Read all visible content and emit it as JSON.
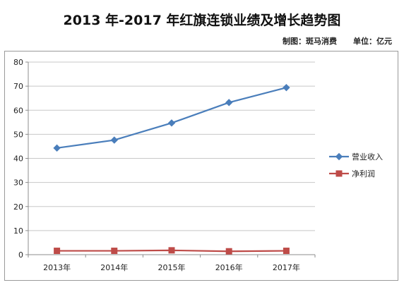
{
  "header": {
    "title": "2013 年-2017 年红旗连锁业绩及增长趋势图",
    "source": "制图：斑马消费",
    "unit": "单位：亿元"
  },
  "chart_data": {
    "type": "line",
    "categories": [
      "2013年",
      "2014年",
      "2015年",
      "2016年",
      "2017年"
    ],
    "ylim": [
      0,
      80
    ],
    "yticks": [
      0,
      10,
      20,
      30,
      40,
      50,
      60,
      70,
      80
    ],
    "grid": true,
    "legend_position": "right",
    "series": [
      {
        "name": "营业收入",
        "values": [
          44.3,
          47.6,
          54.7,
          63.2,
          69.4
        ],
        "color": "#4a7ebb",
        "marker": "diamond"
      },
      {
        "name": "净利润",
        "values": [
          1.6,
          1.6,
          1.8,
          1.4,
          1.6
        ],
        "color": "#be4b48",
        "marker": "square"
      }
    ]
  }
}
